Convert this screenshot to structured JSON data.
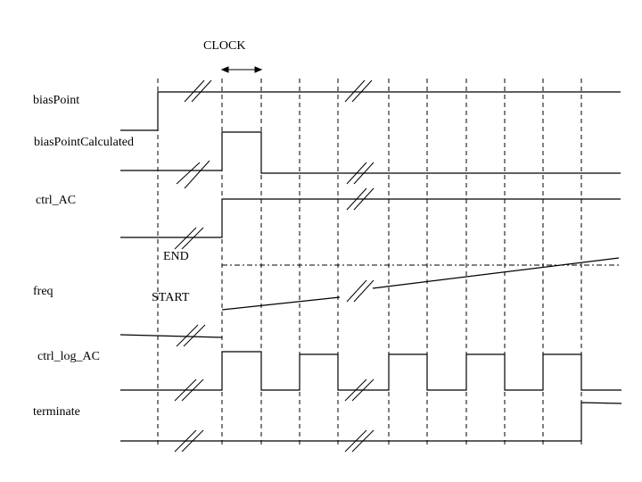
{
  "diagram": {
    "clock_label": "CLOCK",
    "end_label": "END",
    "start_label": "START",
    "signals": [
      {
        "name": "biasPoint"
      },
      {
        "name": "biasPointCalculated"
      },
      {
        "name": "ctrl_AC"
      },
      {
        "name": "freq"
      },
      {
        "name": "ctrl_log_AC"
      },
      {
        "name": "terminate"
      }
    ],
    "colors": {
      "line": "#000000",
      "background": "#ffffff"
    }
  }
}
